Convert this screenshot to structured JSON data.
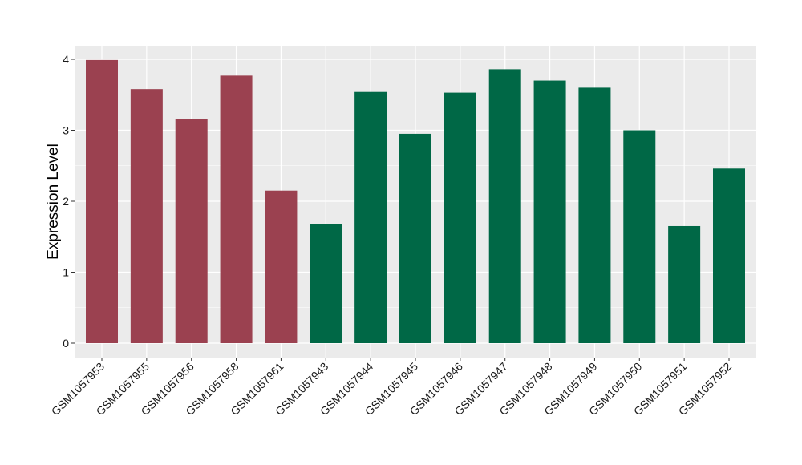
{
  "chart_data": {
    "type": "bar",
    "title": "",
    "xlabel": "",
    "ylabel": "Expression Level",
    "ylim": [
      0,
      4.15
    ],
    "yticks": [
      0,
      1,
      2,
      3,
      4
    ],
    "grid": true,
    "categories": [
      "GSM1057953",
      "GSM1057955",
      "GSM1057956",
      "GSM1057958",
      "GSM1057961",
      "GSM1057943",
      "GSM1057944",
      "GSM1057945",
      "GSM1057946",
      "GSM1057947",
      "GSM1057948",
      "GSM1057949",
      "GSM1057950",
      "GSM1057951",
      "GSM1057952"
    ],
    "values": [
      3.99,
      3.58,
      3.16,
      3.77,
      2.15,
      1.68,
      3.54,
      2.95,
      3.53,
      3.86,
      3.7,
      3.6,
      3.0,
      1.65,
      2.46
    ],
    "groups": [
      "a",
      "a",
      "a",
      "a",
      "a",
      "b",
      "b",
      "b",
      "b",
      "b",
      "b",
      "b",
      "b",
      "b",
      "b"
    ],
    "colors": {
      "a": "#9b4150",
      "b": "#006846"
    },
    "panel_background": "#ebebeb",
    "gridline_color": "#ffffff"
  }
}
